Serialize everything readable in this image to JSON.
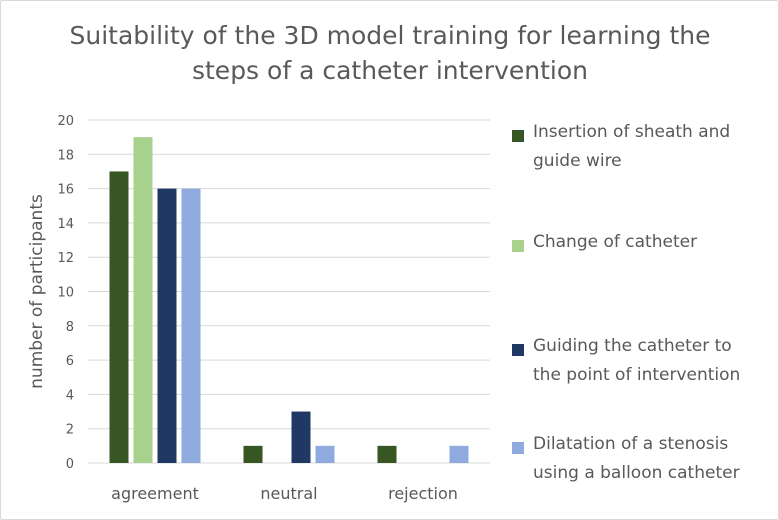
{
  "chart_data": {
    "type": "bar",
    "title_lines": [
      "Suitability of the 3D model training for learning the",
      "steps of a catheter intervention"
    ],
    "xlabel": "",
    "ylabel": "number of participants",
    "categories": [
      "agreement",
      "neutral",
      "rejection"
    ],
    "ylim": [
      0,
      20
    ],
    "yticks": [
      0,
      2,
      4,
      6,
      8,
      10,
      12,
      14,
      16,
      18,
      20
    ],
    "grid": true,
    "legend_position": "right",
    "series": [
      {
        "name_lines": [
          "Insertion of sheath and",
          "guide wire"
        ],
        "color": "#375623",
        "values": [
          17,
          1,
          1
        ]
      },
      {
        "name_lines": [
          "Change of catheter"
        ],
        "color": "#a9d18e",
        "values": [
          19,
          0,
          0
        ]
      },
      {
        "name_lines": [
          "Guiding the catheter to",
          "the point of intervention"
        ],
        "color": "#203864",
        "values": [
          16,
          3,
          0
        ]
      },
      {
        "name_lines": [
          "Dilatation of a stenosis",
          "using a balloon catheter"
        ],
        "color": "#8faadc",
        "values": [
          16,
          1,
          1
        ]
      }
    ]
  }
}
